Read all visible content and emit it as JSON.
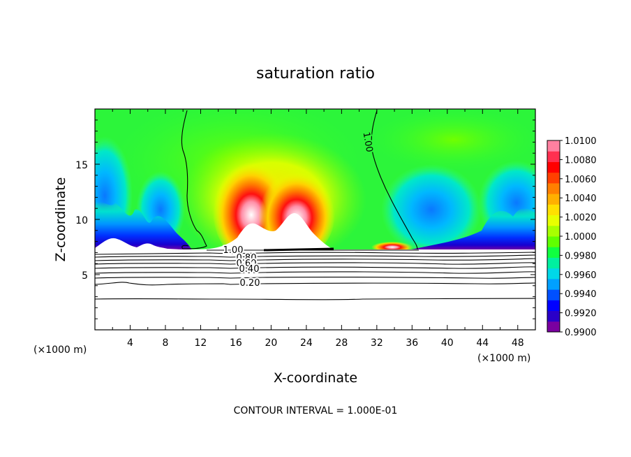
{
  "chart_data": {
    "type": "heatmap",
    "title": "saturation ratio",
    "xlabel": "X-coordinate",
    "ylabel": "Z-coordinate",
    "x_unit": "(×1000 m)",
    "xlim": [
      0,
      50
    ],
    "ylim": [
      0,
      20
    ],
    "x_ticks": [
      "4",
      "8",
      "12",
      "16",
      "20",
      "24",
      "28",
      "32",
      "36",
      "40",
      "44",
      "48"
    ],
    "y_ticks": [
      "5",
      "10",
      "15"
    ],
    "colorbar": {
      "min": 0.99,
      "max": 1.01,
      "tick_labels": [
        "1.0100",
        "1.0080",
        "1.0060",
        "1.0040",
        "1.0020",
        "1.0000",
        "0.9980",
        "0.9960",
        "0.9940",
        "0.9920",
        "0.9900"
      ],
      "colors": [
        "#7a00a0",
        "#2a00c8",
        "#0000ff",
        "#0050ff",
        "#00a0ff",
        "#00d8e8",
        "#00f0a0",
        "#10ff40",
        "#60ff00",
        "#a8ff00",
        "#e8ff00",
        "#ffe000",
        "#ffb000",
        "#ff8000",
        "#ff4000",
        "#ff0000",
        "#ff3050",
        "#ff80a0"
      ]
    },
    "contour_labels": [
      "1.00",
      "1.00",
      "0.80",
      "0.60",
      "0.40",
      "0.20"
    ],
    "footer": "CONTOUR INTERVAL = 1.000E-01"
  }
}
